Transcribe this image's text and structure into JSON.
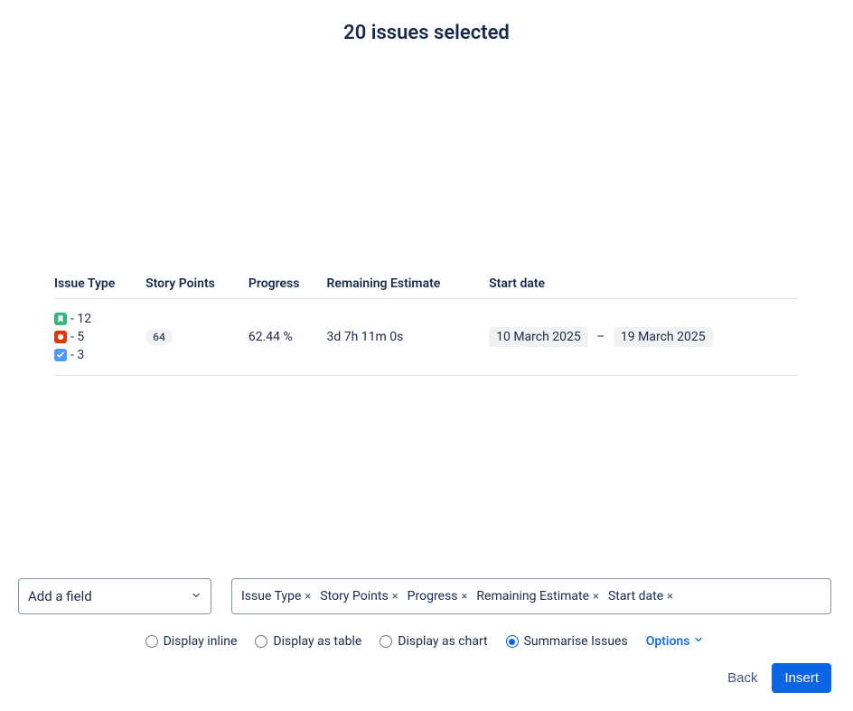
{
  "header": {
    "title": "20 issues selected"
  },
  "table": {
    "headers": [
      "Issue Type",
      "Story Points",
      "Progress",
      "Remaining Estimate",
      "Start date"
    ],
    "issue_types": [
      {
        "icon": "story",
        "icon_bg": "#36b37e",
        "count": 12
      },
      {
        "icon": "bug",
        "icon_bg": "#de350b",
        "count": 5
      },
      {
        "icon": "task",
        "icon_bg": "#4c9aff",
        "count": 3
      }
    ],
    "story_points": "64",
    "progress": "62.44 %",
    "remaining_estimate": "3d 7h 11m 0s",
    "start_date_from": "10 March 2025",
    "start_date_to": "19 March 2025",
    "date_separator": "–"
  },
  "controls": {
    "add_field_label": "Add a field",
    "chips": [
      "Issue Type",
      "Story Points",
      "Progress",
      "Remaining Estimate",
      "Start date"
    ],
    "display_modes": [
      {
        "label": "Display inline",
        "checked": false
      },
      {
        "label": "Display as table",
        "checked": false
      },
      {
        "label": "Display as chart",
        "checked": false
      },
      {
        "label": "Summarise Issues",
        "checked": true
      }
    ],
    "options_label": "Options",
    "back_label": "Back",
    "insert_label": "Insert"
  },
  "style": {
    "badge_bg": "#f1f2f4",
    "border": "#dfe1e6",
    "primary": "#0c66e4"
  }
}
